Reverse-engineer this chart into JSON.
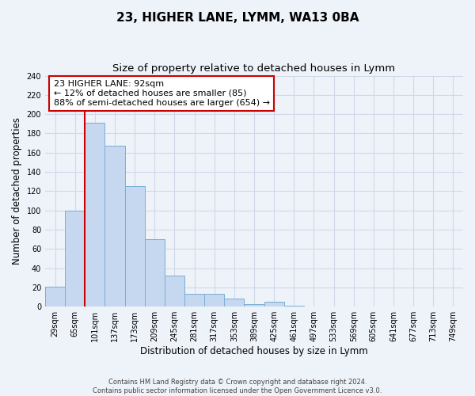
{
  "title": "23, HIGHER LANE, LYMM, WA13 0BA",
  "subtitle": "Size of property relative to detached houses in Lymm",
  "xlabel": "Distribution of detached houses by size in Lymm",
  "ylabel": "Number of detached properties",
  "bar_labels": [
    "29sqm",
    "65sqm",
    "101sqm",
    "137sqm",
    "173sqm",
    "209sqm",
    "245sqm",
    "281sqm",
    "317sqm",
    "353sqm",
    "389sqm",
    "425sqm",
    "461sqm",
    "497sqm",
    "533sqm",
    "569sqm",
    "605sqm",
    "641sqm",
    "677sqm",
    "713sqm",
    "749sqm"
  ],
  "bar_heights": [
    21,
    100,
    191,
    167,
    125,
    70,
    32,
    13,
    13,
    8,
    3,
    5,
    1,
    0,
    0,
    0,
    0,
    0,
    0,
    0,
    0
  ],
  "bar_color": "#c5d8ef",
  "bar_edge_color": "#7aaed4",
  "vline_x": 2,
  "vline_color": "#cc0000",
  "ylim": [
    0,
    240
  ],
  "yticks": [
    0,
    20,
    40,
    60,
    80,
    100,
    120,
    140,
    160,
    180,
    200,
    220,
    240
  ],
  "annotation_box_text": "23 HIGHER LANE: 92sqm\n← 12% of detached houses are smaller (85)\n88% of semi-detached houses are larger (654) →",
  "footer_text": "Contains HM Land Registry data © Crown copyright and database right 2024.\nContains public sector information licensed under the Open Government Licence v3.0.",
  "background_color": "#eef2f9",
  "grid_color": "#d0d8e8",
  "title_fontsize": 11,
  "subtitle_fontsize": 9.5,
  "label_fontsize": 8.5,
  "tick_fontsize": 7,
  "footer_fontsize": 6
}
